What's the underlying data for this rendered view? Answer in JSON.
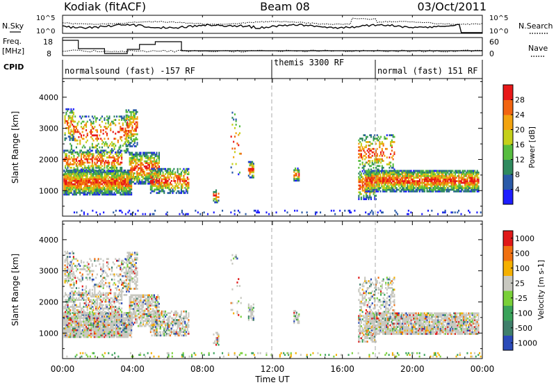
{
  "header": {
    "station": "Kodiak (fitACF)",
    "beam": "Beam 08",
    "date": "03/Oct/2011"
  },
  "summary_labels": {
    "nsky": "N.Sky",
    "nsearch": "N.Search",
    "freq_line1": "Freq.",
    "freq_line2": "[MHz]",
    "nave": "Nave",
    "cpid": "CPID",
    "noise_tick_top": "10^5",
    "noise_tick_bottom": "10^0",
    "freq_tick_top": "18",
    "freq_tick_bottom": "8",
    "nave_tick_top": "60",
    "nave_tick_bottom": "0"
  },
  "cpid_segments": [
    {
      "label": "normalsound (fast) -157 RF",
      "start_hour": 0.0,
      "end_hour": 12.0
    },
    {
      "label": "themis 3300 RF",
      "start_hour": 12.0,
      "end_hour": 18.0
    },
    {
      "label": "normal (fast) 151 RF",
      "start_hour": 18.0,
      "end_hour": 24.0
    }
  ],
  "chart_data": [
    {
      "type": "heatmap",
      "parameter": "Power",
      "ylabel": "Slant Range [km]",
      "xlabel": "Time UT",
      "xlim_hours": [
        0,
        24
      ],
      "ylim": [
        180,
        4600
      ],
      "yticks": [
        "1000",
        "2000",
        "3000",
        "4000"
      ],
      "xticks": [
        "00:00",
        "04:00",
        "08:00",
        "12:00",
        "16:00",
        "20:00",
        "00:00"
      ],
      "colorbar": {
        "label": "Power [dB]",
        "ticks": [
          "4",
          "8",
          "12",
          "16",
          "20",
          "24",
          "28"
        ],
        "colors": [
          "#1d1dff",
          "#2a5aa8",
          "#2f8a5e",
          "#57bd3f",
          "#c5d01a",
          "#f2a30f",
          "#f26410",
          "#e81818"
        ]
      }
    },
    {
      "type": "heatmap",
      "parameter": "Velocity",
      "ylabel": "Slant Range [km]",
      "xlabel": "Time UT",
      "xlim_hours": [
        0,
        24
      ],
      "ylim": [
        180,
        4600
      ],
      "yticks": [
        "1000",
        "2000",
        "3000",
        "4000"
      ],
      "xticks": [
        "00:00",
        "04:00",
        "08:00",
        "12:00",
        "16:00",
        "20:00",
        "00:00"
      ],
      "colorbar": {
        "label": "Velocity [m s-1]",
        "ticks": [
          "1000",
          "500",
          "100",
          "25",
          "-25",
          "-100",
          "-500",
          "-1000"
        ],
        "colors": [
          "#2a4ab8",
          "#3f7f6b",
          "#3aa35a",
          "#79d038",
          "#c8c8c0",
          "#f5b000",
          "#f07010",
          "#e01818"
        ]
      }
    }
  ],
  "footer": {
    "time_axis_label": "Time UT"
  }
}
